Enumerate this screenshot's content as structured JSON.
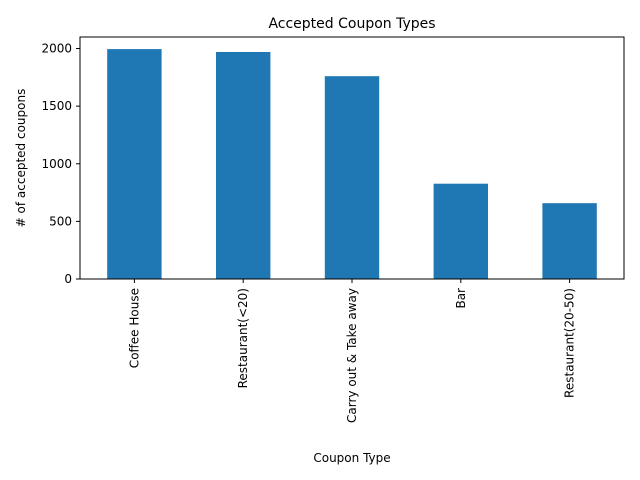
{
  "chart_data": {
    "type": "bar",
    "title": "Accepted Coupon Types",
    "xlabel": "Coupon Type",
    "ylabel": "# of accepted coupons",
    "categories": [
      "Coffee House",
      "Restaurant(<20)",
      "Carry out & Take away",
      "Bar",
      "Restaurant(20-50)"
    ],
    "values": [
      1995,
      1970,
      1760,
      827,
      658
    ],
    "ylim": [
      0,
      2100
    ],
    "yticks": [
      0,
      500,
      1000,
      1500,
      2000
    ],
    "bar_color": "#1f77b4",
    "grid": false,
    "legend": "none"
  }
}
